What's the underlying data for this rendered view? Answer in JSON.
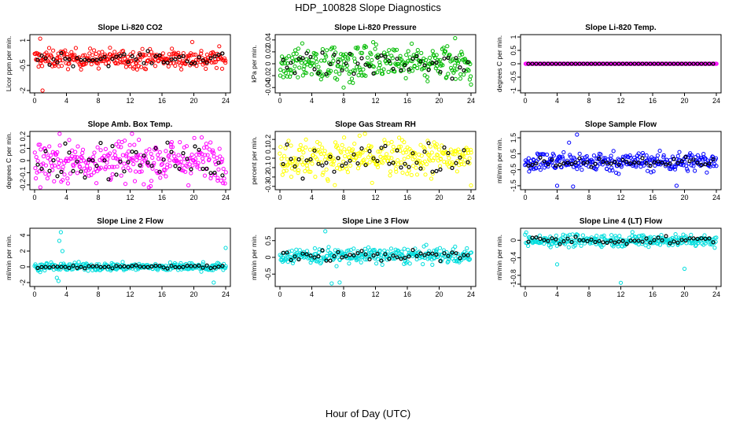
{
  "title": "HDP_100828  Slope Diagnostics",
  "xlabel": "Hour of Day (UTC)",
  "chart_data": [
    {
      "type": "scatter",
      "title": "Slope Li-820 CO2",
      "ylabel": "Licor ppm per min.",
      "color": "#ff0000",
      "xlim": [
        0,
        24
      ],
      "xticks": [
        0,
        4,
        8,
        12,
        16,
        20,
        24
      ],
      "ylim": [
        -2.0,
        1.2
      ],
      "yticks": [
        -2.0,
        -0.5,
        1.0
      ],
      "center": -0.1,
      "spread": 0.28,
      "black_spread": 0.18,
      "outliers": [
        [
          0.7,
          1.1
        ],
        [
          1.0,
          -2.0
        ],
        [
          19.8,
          0.9
        ],
        [
          21.5,
          -0.7
        ]
      ]
    },
    {
      "type": "scatter",
      "title": "Slope Li-820 Pressure",
      "ylabel": "kPa per min.",
      "color": "#00bb00",
      "xlim": [
        0,
        24
      ],
      "xticks": [
        0,
        4,
        8,
        12,
        16,
        20,
        24
      ],
      "ylim": [
        -0.045,
        0.045
      ],
      "yticks": [
        -0.04,
        -0.02,
        0.0,
        0.02,
        0.04
      ],
      "center": 0.0,
      "spread": 0.015,
      "black_spread": 0.012,
      "outliers": [
        [
          22.0,
          0.043
        ],
        [
          24.0,
          -0.035
        ],
        [
          8.0,
          -0.04
        ]
      ]
    },
    {
      "type": "scatter",
      "title": "Slope Li-820 Temp.",
      "ylabel": "degrees C per min.",
      "color": "#ff00ff",
      "xlim": [
        0,
        24
      ],
      "xticks": [
        0,
        4,
        8,
        12,
        16,
        20,
        24
      ],
      "ylim": [
        -1.0,
        1.0
      ],
      "yticks": [
        -1.0,
        -0.5,
        0.0,
        0.5,
        1.0
      ],
      "center": 0.0,
      "spread": 0.0,
      "black_spread": 0.0,
      "outliers": []
    },
    {
      "type": "scatter",
      "title": "Slope Amb. Box Temp.",
      "ylabel": "degrees C per min.",
      "color": "#ff00ff",
      "xlim": [
        0,
        24
      ],
      "xticks": [
        0,
        4,
        8,
        12,
        16,
        20,
        24
      ],
      "ylim": [
        -0.22,
        0.22
      ],
      "yticks": [
        -0.2,
        -0.1,
        0.0,
        0.1,
        0.2
      ],
      "center": 0.0,
      "spread": 0.09,
      "black_spread": 0.07,
      "outliers": []
    },
    {
      "type": "scatter",
      "title": "Slope Gas Stream RH",
      "ylabel": "percent per min.",
      "color": "#ffff00",
      "xlim": [
        0,
        24
      ],
      "xticks": [
        0,
        4,
        8,
        12,
        16,
        20,
        24
      ],
      "ylim": [
        -0.31,
        0.26
      ],
      "yticks": [
        -0.3,
        -0.2,
        -0.1,
        0.0,
        0.1,
        0.2
      ],
      "center": 0.0,
      "spread": 0.1,
      "black_spread": 0.08,
      "outliers": [
        [
          10.0,
          0.24
        ],
        [
          24.0,
          -0.29
        ]
      ]
    },
    {
      "type": "scatter",
      "title": "Slope Sample Flow",
      "ylabel": "ml/min per min.",
      "color": "#0000ff",
      "xlim": [
        0,
        24
      ],
      "xticks": [
        0,
        4,
        8,
        12,
        16,
        20,
        24
      ],
      "ylim": [
        -1.6,
        1.75
      ],
      "yticks": [
        -1.5,
        -0.5,
        0.5,
        1.5
      ],
      "center": 0.0,
      "spread": 0.3,
      "black_spread": 0.15,
      "outliers": [
        [
          6.5,
          1.7
        ],
        [
          5.5,
          1.2
        ],
        [
          6.0,
          -1.55
        ],
        [
          4.0,
          -1.5
        ],
        [
          19.0,
          -1.5
        ]
      ]
    },
    {
      "type": "scatter",
      "title": "Slope Line 2 Flow",
      "ylabel": "ml/min per min.",
      "color": "#00dddd",
      "xlim": [
        0,
        24
      ],
      "xticks": [
        0,
        4,
        8,
        12,
        16,
        20,
        24
      ],
      "ylim": [
        -2.2,
        4.6
      ],
      "yticks": [
        -2,
        0,
        2,
        4
      ],
      "center": 0.0,
      "spread": 0.25,
      "black_spread": 0.1,
      "outliers": [
        [
          3.3,
          4.4
        ],
        [
          3.1,
          3.3
        ],
        [
          2.8,
          -1.4
        ],
        [
          3.0,
          -1.8
        ],
        [
          3.5,
          2.0
        ],
        [
          24.0,
          2.4
        ],
        [
          22.5,
          -2.0
        ]
      ]
    },
    {
      "type": "scatter",
      "title": "Slope Line 3 Flow",
      "ylabel": "ml/min per min.",
      "color": "#00dddd",
      "xlim": [
        0,
        24
      ],
      "xticks": [
        0,
        4,
        8,
        12,
        16,
        20,
        24
      ],
      "ylim": [
        -0.8,
        0.8
      ],
      "yticks": [
        -0.5,
        0.0,
        0.5
      ],
      "center": 0.05,
      "spread": 0.12,
      "black_spread": 0.08,
      "outliers": [
        [
          5.7,
          0.78
        ],
        [
          6.5,
          -0.78
        ],
        [
          7.5,
          -0.75
        ]
      ]
    },
    {
      "type": "scatter",
      "title": "Slope Line 4 (LT) Flow",
      "ylabel": "ml/min per min.",
      "color": "#00dddd",
      "xlim": [
        0,
        24
      ],
      "xticks": [
        0,
        4,
        8,
        12,
        16,
        20,
        24
      ],
      "ylim": [
        -1.0,
        0.22
      ],
      "yticks": [
        -1.0,
        -0.8,
        -0.4,
        0.0
      ],
      "center": 0.0,
      "spread": 0.07,
      "black_spread": 0.05,
      "outliers": [
        [
          4.0,
          -0.55
        ],
        [
          12.0,
          -0.97
        ],
        [
          20.0,
          -0.65
        ]
      ]
    }
  ]
}
